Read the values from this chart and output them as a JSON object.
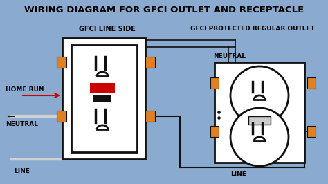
{
  "title": "WIRING DIAGRAM FOR GFCI OUTLET AND RECEPTACLE",
  "title_fontsize": 9.5,
  "title_fontweight": "bold",
  "bg_color": "#ffffff",
  "outer_bg": "#8aabcf",
  "label_gfci_line": "GFCI LINE SIDE",
  "label_gfci_protected": "GFCI PROTECTED REGULAR OUTLET",
  "label_home_run": "HOME RUN",
  "label_neutral_left": "NEUTRAL",
  "label_neutral_right": "NEUTRAL",
  "label_line_left": "LINE",
  "label_line_right": "LINE",
  "outlet_border": "#111111",
  "outlet_fill": "#ffffff",
  "screw_color": "#e08020",
  "red_button": "#cc0000",
  "black_button": "#111111",
  "wire_color": "#111111",
  "home_run_color": "#cc0000",
  "neutral_wire_color": "#d0d0d0"
}
